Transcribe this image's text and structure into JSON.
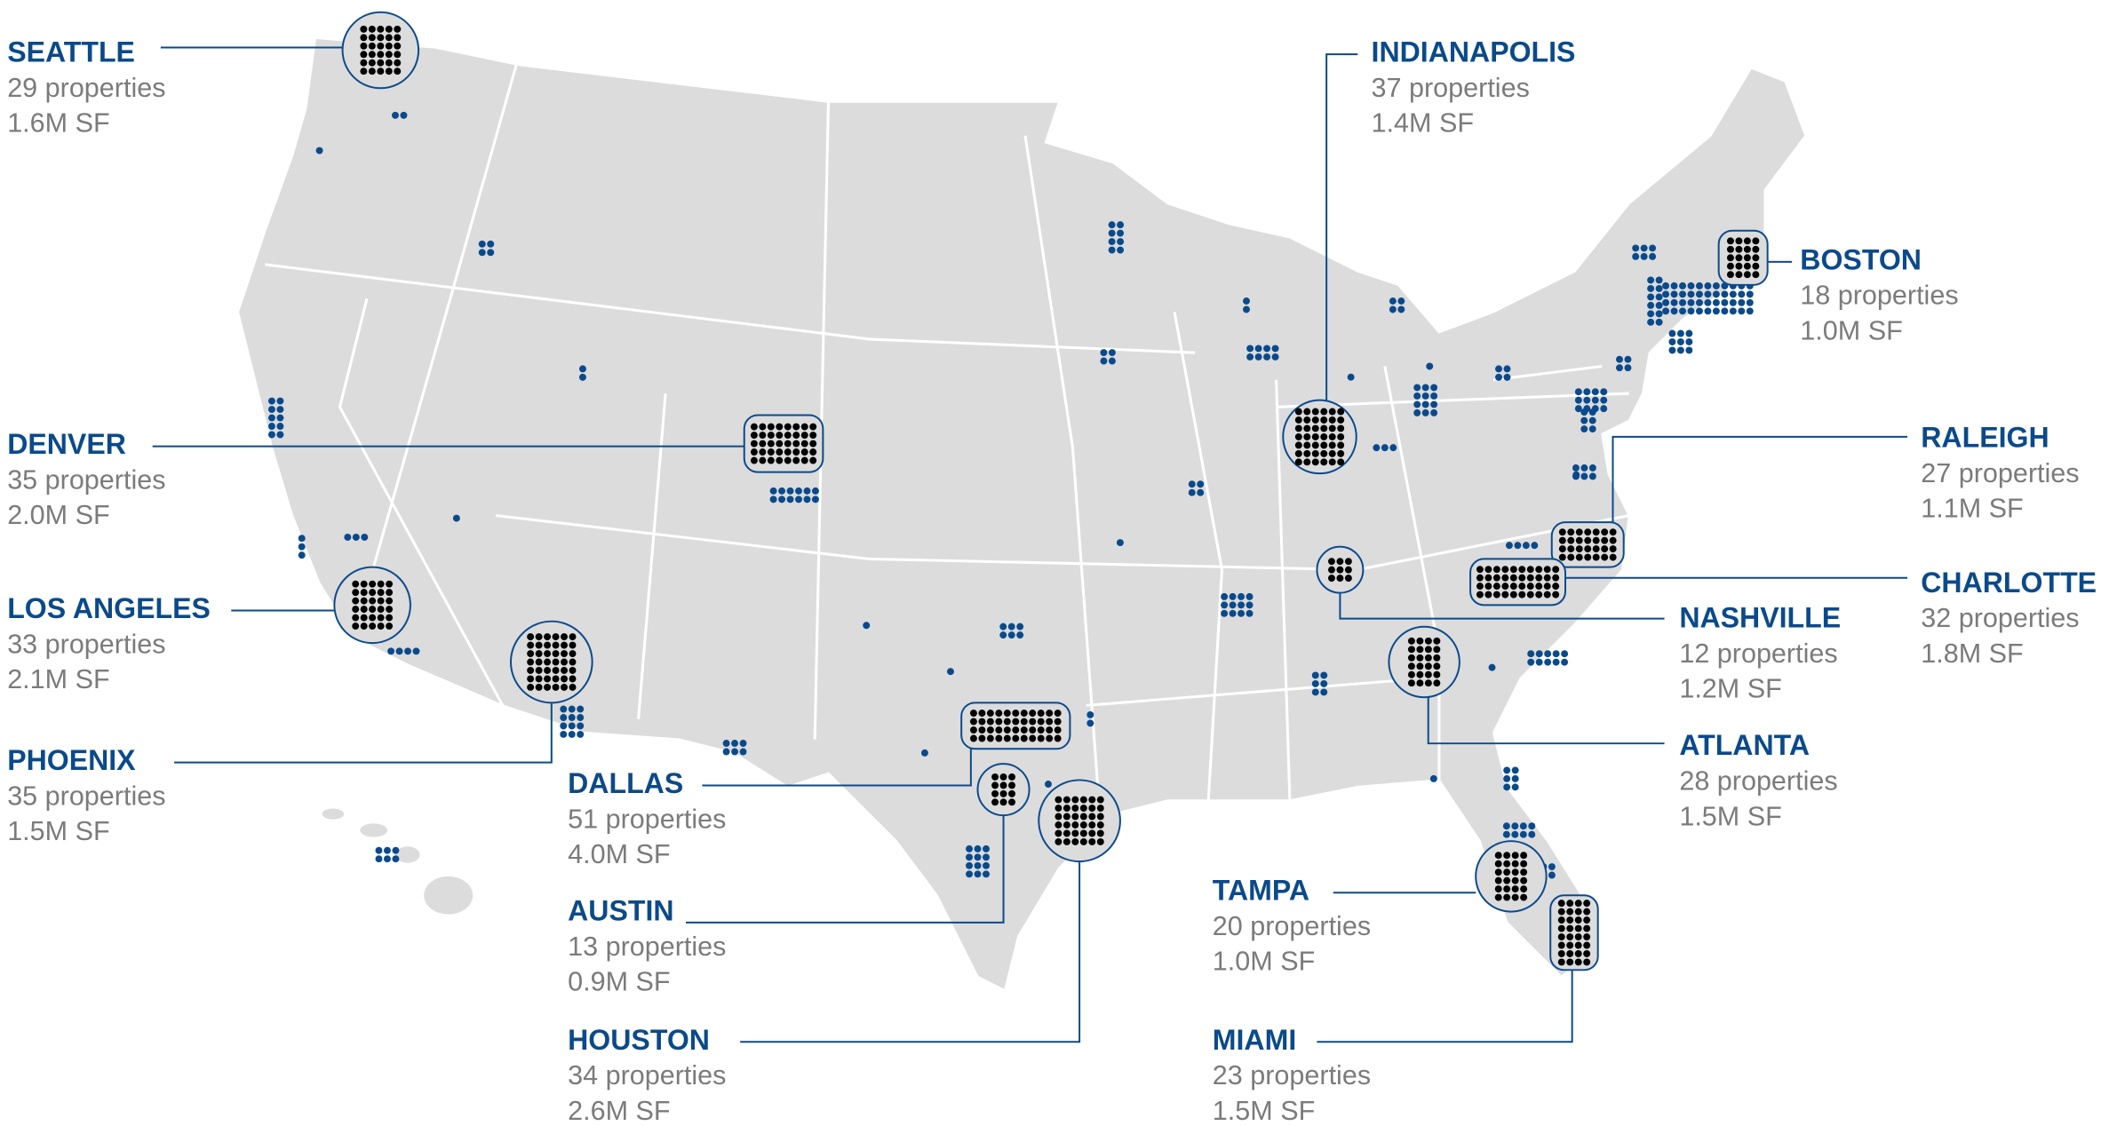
{
  "cities": [
    {
      "name": "SEATTLE",
      "properties": "29 properties",
      "area": "1.6M SF"
    },
    {
      "name": "DENVER",
      "properties": "35 properties",
      "area": "2.0M SF"
    },
    {
      "name": "LOS ANGELES",
      "properties": "33 properties",
      "area": "2.1M SF"
    },
    {
      "name": "PHOENIX",
      "properties": "35 properties",
      "area": "1.5M SF"
    },
    {
      "name": "DALLAS",
      "properties": "51 properties",
      "area": "4.0M SF"
    },
    {
      "name": "AUSTIN",
      "properties": "13 properties",
      "area": "0.9M SF"
    },
    {
      "name": "HOUSTON",
      "properties": "34 properties",
      "area": "2.6M SF"
    },
    {
      "name": "INDIANAPOLIS",
      "properties": "37 properties",
      "area": "1.4M SF"
    },
    {
      "name": "BOSTON",
      "properties": "18 properties",
      "area": "1.0M SF"
    },
    {
      "name": "RALEIGH",
      "properties": "27 properties",
      "area": "1.1M SF"
    },
    {
      "name": "CHARLOTTE",
      "properties": "32 properties",
      "area": "1.8M SF"
    },
    {
      "name": "NASHVILLE",
      "properties": "12 properties",
      "area": "1.2M SF"
    },
    {
      "name": "ATLANTA",
      "properties": "28 properties",
      "area": "1.5M SF"
    },
    {
      "name": "TAMPA",
      "properties": "20 properties",
      "area": "1.0M SF"
    },
    {
      "name": "MIAMI",
      "properties": "23 properties",
      "area": "1.5M SF"
    }
  ]
}
